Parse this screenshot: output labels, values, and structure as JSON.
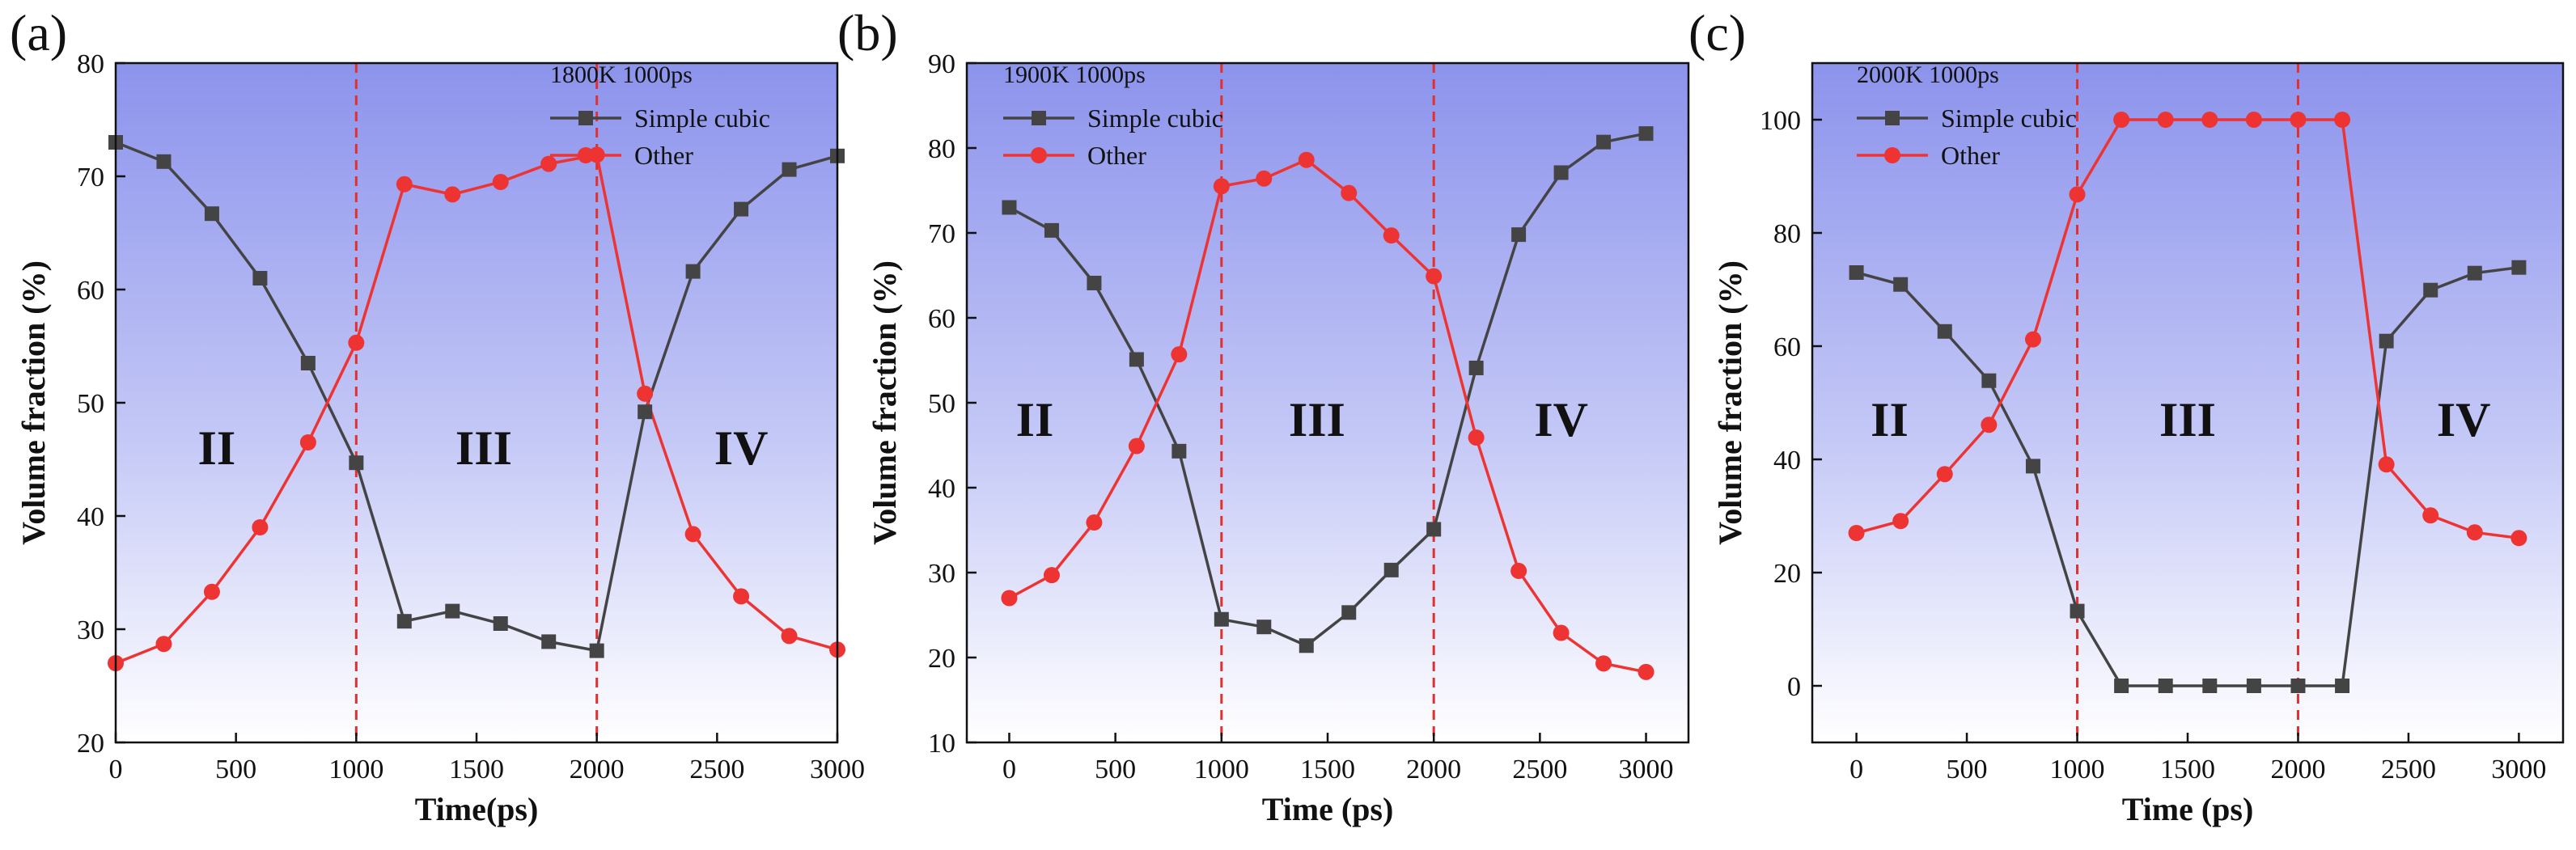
{
  "chart_data": [
    {
      "type": "line",
      "panel_label": "(a)",
      "legend_title": "1800K 1000ps",
      "xlabel": "Time(ps)",
      "ylabel": "Volume fraction (%)",
      "xlim": [
        0,
        3000
      ],
      "ylim": [
        20,
        80
      ],
      "xticks": [
        0,
        500,
        1000,
        1500,
        2000,
        2500,
        3000
      ],
      "yticks": [
        20,
        30,
        40,
        50,
        60,
        70,
        80
      ],
      "xtick_labels": [
        "0",
        "500",
        "1000",
        "1500",
        "2000",
        "2500",
        "3000"
      ],
      "ytick_labels": [
        "20",
        "30",
        "40",
        "50",
        "60",
        "70",
        "80"
      ],
      "vlines": [
        1000,
        2000
      ],
      "regions": [
        {
          "label": "II",
          "x": 420,
          "y": 46
        },
        {
          "label": "III",
          "x": 1530,
          "y": 46
        },
        {
          "label": "IV",
          "x": 2600,
          "y": 46
        }
      ],
      "series": [
        {
          "name": "Simple cubic",
          "color": "#444444",
          "marker": "square",
          "x": [
            0,
            200,
            400,
            600,
            800,
            1000,
            1200,
            1400,
            1600,
            1800,
            2000,
            2200,
            2400,
            2600,
            2800,
            3000
          ],
          "values": [
            73,
            71.3,
            66.7,
            61,
            53.5,
            44.7,
            30.7,
            31.6,
            30.5,
            28.9,
            28.1,
            49.2,
            61.6,
            67.1,
            70.6,
            71.8
          ]
        },
        {
          "name": "Other",
          "color": "#ee3333",
          "marker": "circle",
          "x": [
            0,
            200,
            400,
            600,
            800,
            1000,
            1200,
            1400,
            1600,
            1800,
            2000,
            2200,
            2400,
            2600,
            2800,
            3000
          ],
          "values": [
            27,
            28.7,
            33.3,
            39,
            46.5,
            55.3,
            69.3,
            68.4,
            69.5,
            71.1,
            71.9,
            50.8,
            38.4,
            32.9,
            29.4,
            28.2
          ]
        }
      ]
    },
    {
      "type": "line",
      "panel_label": "(b)",
      "legend_title": "1900K 1000ps",
      "xlabel": "Time (ps)",
      "ylabel": "Volume fraction (%)",
      "xlim": [
        -200,
        3200
      ],
      "ylim": [
        10,
        90
      ],
      "xticks": [
        0,
        500,
        1000,
        1500,
        2000,
        2500,
        3000
      ],
      "yticks": [
        10,
        20,
        30,
        40,
        50,
        60,
        70,
        80,
        90
      ],
      "xtick_labels": [
        "0",
        "500",
        "1000",
        "1500",
        "2000",
        "2500",
        "3000"
      ],
      "ytick_labels": [
        "10",
        "20",
        "30",
        "40",
        "50",
        "60",
        "70",
        "80",
        "90"
      ],
      "vlines": [
        1000,
        2000
      ],
      "regions": [
        {
          "label": "II",
          "x": 120,
          "y": 48
        },
        {
          "label": "III",
          "x": 1450,
          "y": 48
        },
        {
          "label": "IV",
          "x": 2600,
          "y": 48
        }
      ],
      "series": [
        {
          "name": "Simple cubic",
          "color": "#444444",
          "marker": "square",
          "x": [
            0,
            200,
            400,
            600,
            800,
            1000,
            1200,
            1400,
            1600,
            1800,
            2000,
            2200,
            2400,
            2600,
            2800,
            3000
          ],
          "values": [
            73,
            70.3,
            64.1,
            55.1,
            44.3,
            24.5,
            23.6,
            21.4,
            25.3,
            30.3,
            35.1,
            54.1,
            69.8,
            77.1,
            80.7,
            81.7
          ]
        },
        {
          "name": "Other",
          "color": "#ee3333",
          "marker": "circle",
          "x": [
            0,
            200,
            400,
            600,
            800,
            1000,
            1200,
            1400,
            1600,
            1800,
            2000,
            2200,
            2400,
            2600,
            2800,
            3000
          ],
          "values": [
            27,
            29.7,
            35.9,
            44.9,
            55.7,
            75.5,
            76.4,
            78.6,
            74.7,
            69.7,
            64.9,
            45.9,
            30.2,
            22.9,
            19.3,
            18.3
          ]
        }
      ]
    },
    {
      "type": "line",
      "panel_label": "(c)",
      "legend_title": "2000K 1000ps",
      "xlabel": "Time (ps)",
      "ylabel": "Volume fraction (%)",
      "xlim": [
        -200,
        3200
      ],
      "ylim": [
        -10,
        110
      ],
      "xticks": [
        0,
        500,
        1000,
        1500,
        2000,
        2500,
        3000
      ],
      "yticks": [
        0,
        20,
        40,
        60,
        80,
        100
      ],
      "xtick_labels": [
        "0",
        "500",
        "1000",
        "1500",
        "2000",
        "2500",
        "3000"
      ],
      "ytick_labels": [
        "0",
        "20",
        "40",
        "60",
        "80",
        "100"
      ],
      "vlines": [
        1000,
        2000
      ],
      "regions": [
        {
          "label": "II",
          "x": 150,
          "y": 47
        },
        {
          "label": "III",
          "x": 1500,
          "y": 47
        },
        {
          "label": "IV",
          "x": 2750,
          "y": 47
        }
      ],
      "series": [
        {
          "name": "Simple cubic",
          "color": "#444444",
          "marker": "square",
          "x": [
            0,
            200,
            400,
            600,
            800,
            1000,
            1200,
            1400,
            1600,
            1800,
            2000,
            2200,
            2400,
            2600,
            2800,
            3000
          ],
          "values": [
            73,
            70.9,
            62.6,
            53.9,
            38.8,
            13.2,
            0,
            0,
            0,
            0,
            0,
            0,
            60.9,
            69.9,
            72.9,
            73.9
          ]
        },
        {
          "name": "Other",
          "color": "#ee3333",
          "marker": "circle",
          "x": [
            0,
            200,
            400,
            600,
            800,
            1000,
            1200,
            1400,
            1600,
            1800,
            2000,
            2200,
            2400,
            2600,
            2800,
            3000
          ],
          "values": [
            27,
            29.1,
            37.4,
            46.1,
            61.2,
            86.8,
            100,
            100,
            100,
            100,
            100,
            100,
            39.1,
            30.1,
            27.1,
            26.1
          ]
        }
      ]
    }
  ]
}
